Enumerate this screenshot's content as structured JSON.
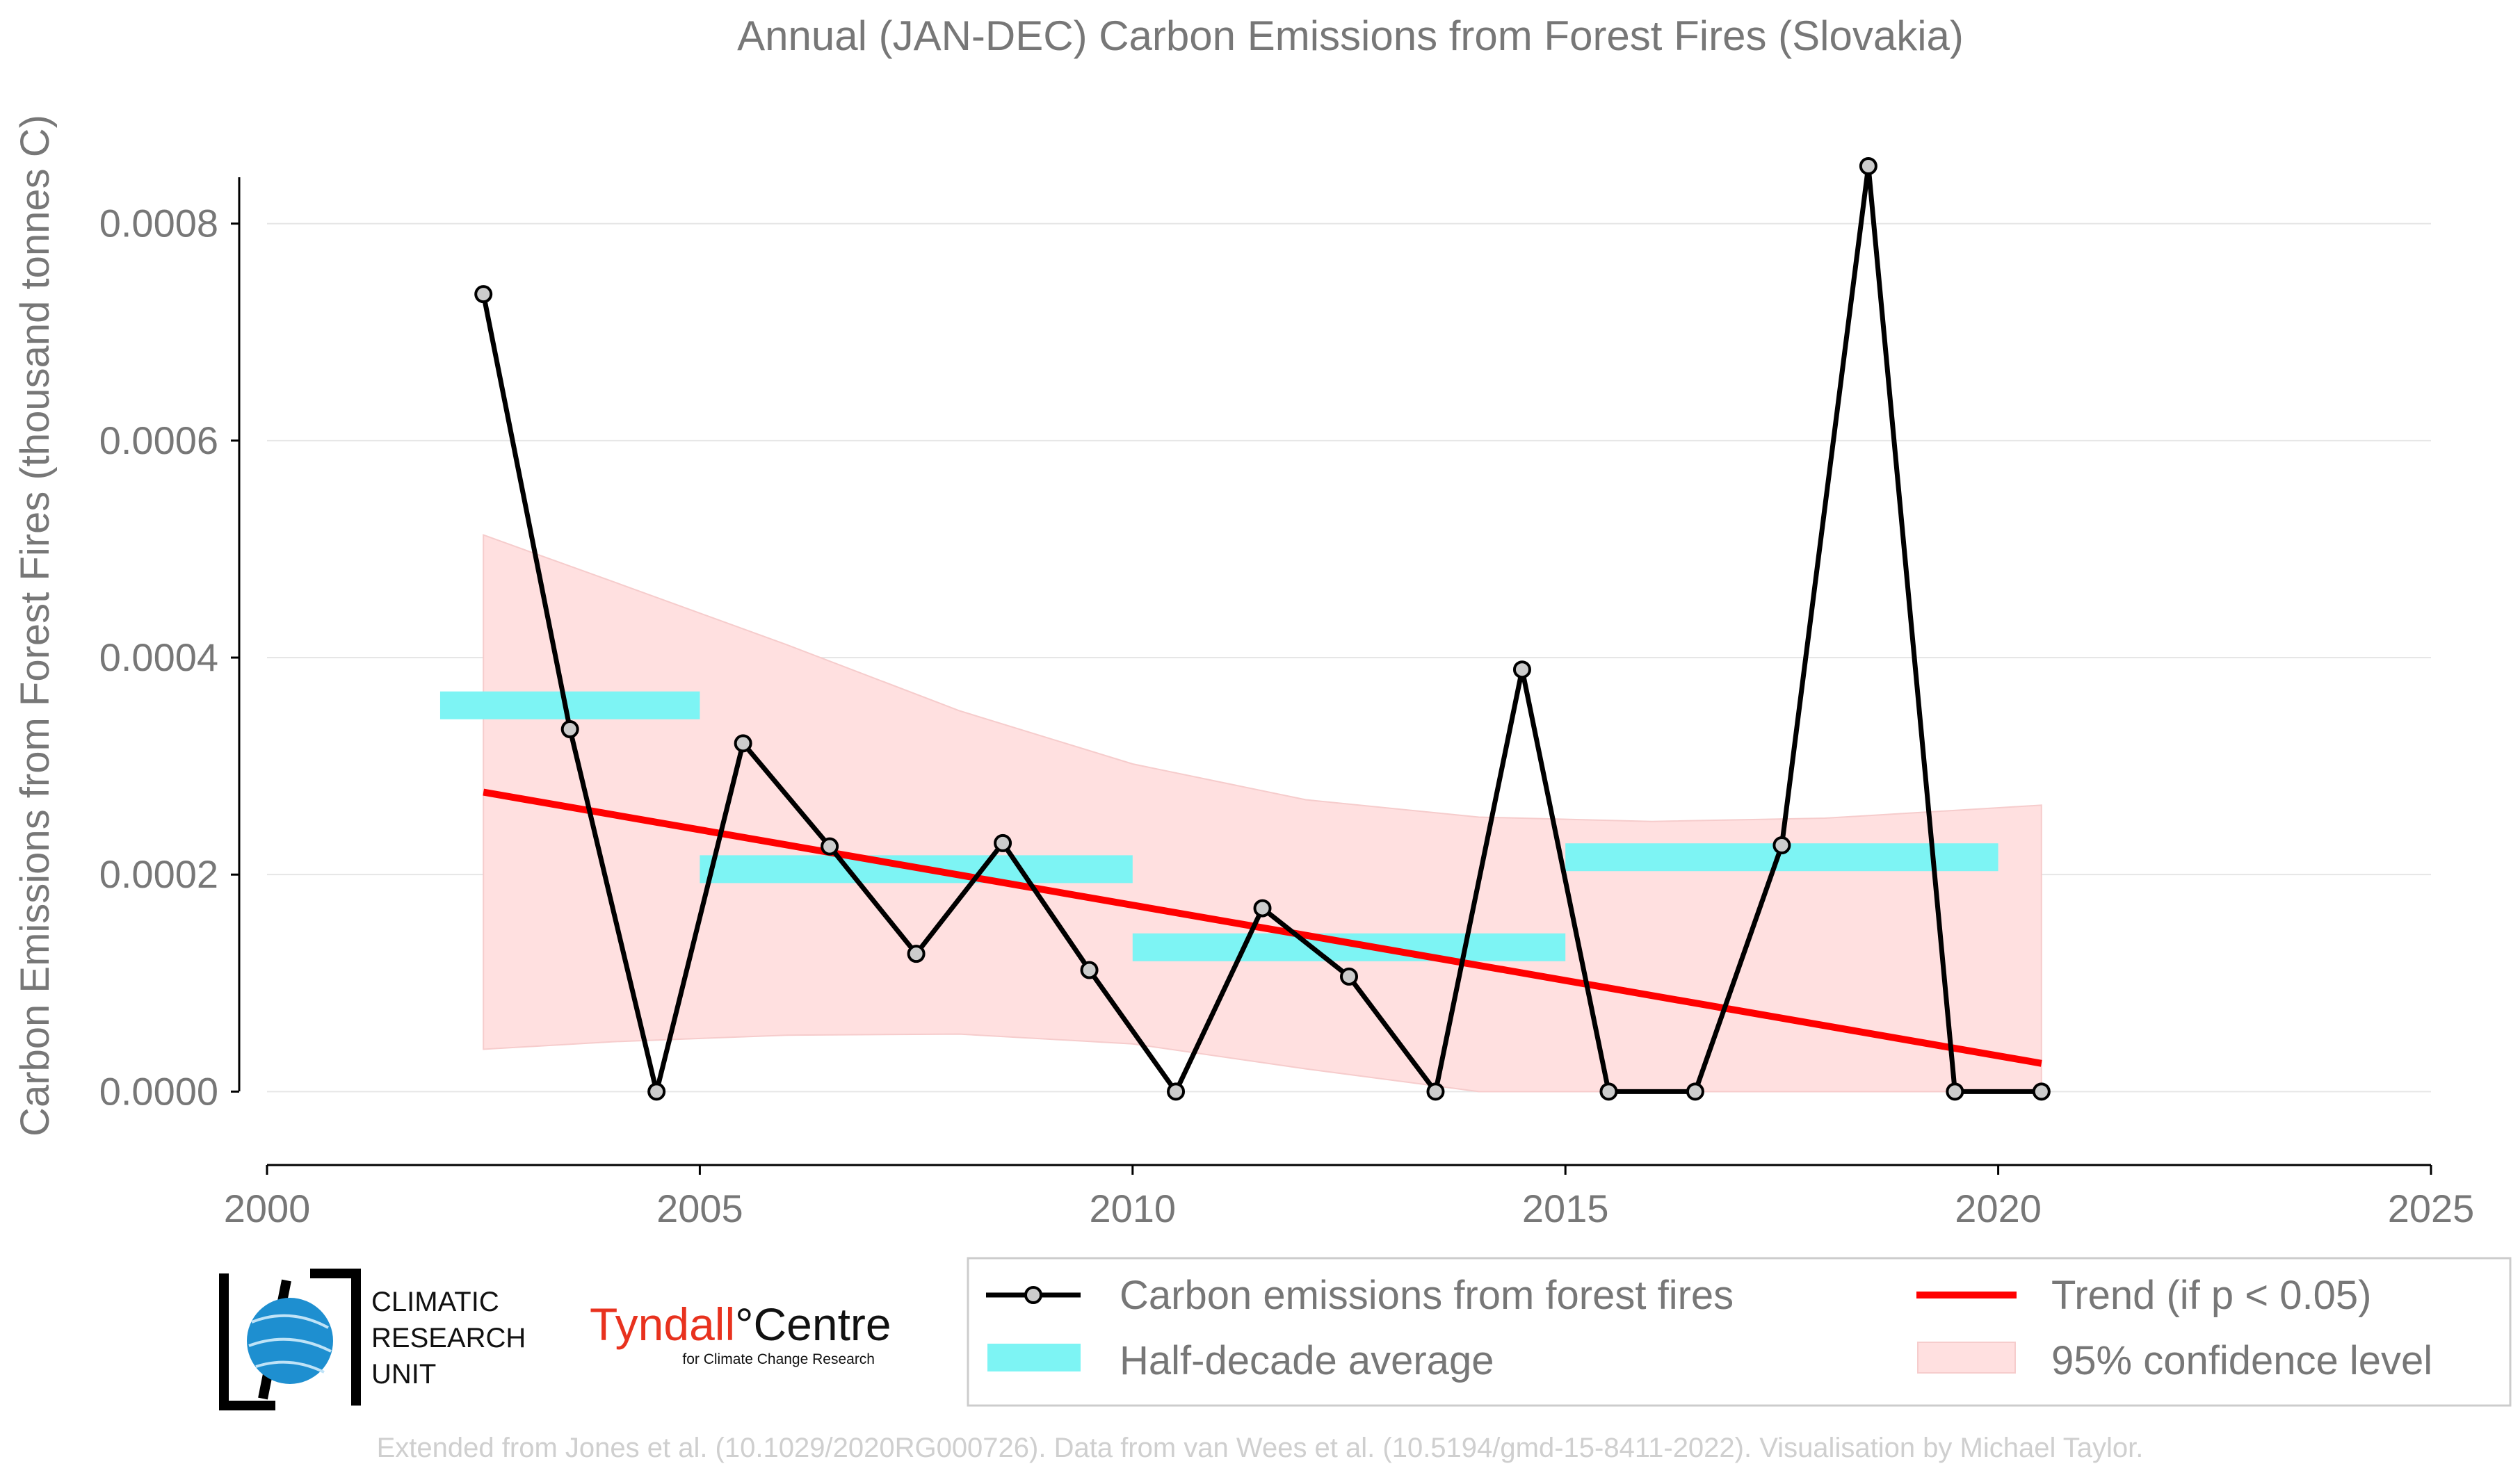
{
  "chart_data": {
    "type": "line",
    "title": "Annual (JAN-DEC) Carbon Emissions from Forest Fires (Slovakia)",
    "xlabel": "",
    "ylabel": "Carbon Emissions from Forest Fires (thousand tonnes C)",
    "xlim": [
      2000,
      2025
    ],
    "ylim": [
      -6e-05,
      0.00091
    ],
    "x_ticks": [
      2000,
      2005,
      2010,
      2015,
      2020,
      2025
    ],
    "x_tick_labels": [
      "2000",
      "2005",
      "2010",
      "2015",
      "2020",
      "2025"
    ],
    "y_ticks": [
      0,
      0.0002,
      0.0004,
      0.0006,
      0.0008
    ],
    "y_tick_labels": [
      "0.0000",
      "0.0002",
      "0.0004",
      "0.0006",
      "0.0008"
    ],
    "grid": "horizontal",
    "legend_position": "bottom-right",
    "series": [
      {
        "name": "Carbon emissions from forest fires",
        "color": "#000000",
        "marker_fill": "#cccccc",
        "x": [
          2002.5,
          2003.5,
          2004.5,
          2005.5,
          2006.5,
          2007.5,
          2008.5,
          2009.5,
          2010.5,
          2011.5,
          2012.5,
          2013.5,
          2014.5,
          2015.5,
          2016.5,
          2017.5,
          2018.5,
          2019.5,
          2020.5
        ],
        "y": [
          0.000735,
          0.000334,
          0.0,
          0.000321,
          0.000226,
          0.000127,
          0.000229,
          0.000112,
          0.0,
          0.000169,
          0.000106,
          0.0,
          0.000389,
          0.0,
          0.0,
          0.000227,
          0.000853,
          0.0,
          0.0
        ]
      },
      {
        "name": "Half-decade average",
        "color": "#7df4f4",
        "segments": [
          {
            "x_start": 2002,
            "x_end": 2005,
            "y": 0.000356
          },
          {
            "x_start": 2005,
            "x_end": 2010,
            "y": 0.000205
          },
          {
            "x_start": 2010,
            "x_end": 2015,
            "y": 0.000133
          },
          {
            "x_start": 2015,
            "x_end": 2020,
            "y": 0.000216
          }
        ]
      },
      {
        "name": "Trend (if p < 0.05)",
        "color": "#ff0000",
        "x": [
          2002.5,
          2020.5
        ],
        "y": [
          0.000276,
          2.6e-05
        ]
      },
      {
        "name": "95% confidence level",
        "color": "#ffd6d6",
        "x": [
          2002.5,
          2004,
          2006,
          2008,
          2010,
          2012,
          2014,
          2016,
          2018,
          2020.5
        ],
        "upper": [
          0.000513,
          0.00047,
          0.000412,
          0.000351,
          0.000302,
          0.000269,
          0.000253,
          0.000249,
          0.000252,
          0.000264
        ],
        "lower": [
          3.9e-05,
          4.6e-05,
          5.2e-05,
          5.3e-05,
          4.4e-05,
          2.1e-05,
          0.0,
          0.0,
          0.0,
          0.0
        ]
      }
    ]
  },
  "logos": {
    "cru_line1": "CLIMATIC",
    "cru_line2": "RESEARCH",
    "cru_line3": "UNIT",
    "tyndall_part1": "Tyndall",
    "tyndall_part2": "°Centre",
    "tyndall_sub": "for Climate Change Research"
  },
  "credit": "Extended from Jones et al. (10.1029/2020RG000726). Data from van Wees et al. (10.5194/gmd-15-8411-2022). Visualisation by Michael Taylor."
}
